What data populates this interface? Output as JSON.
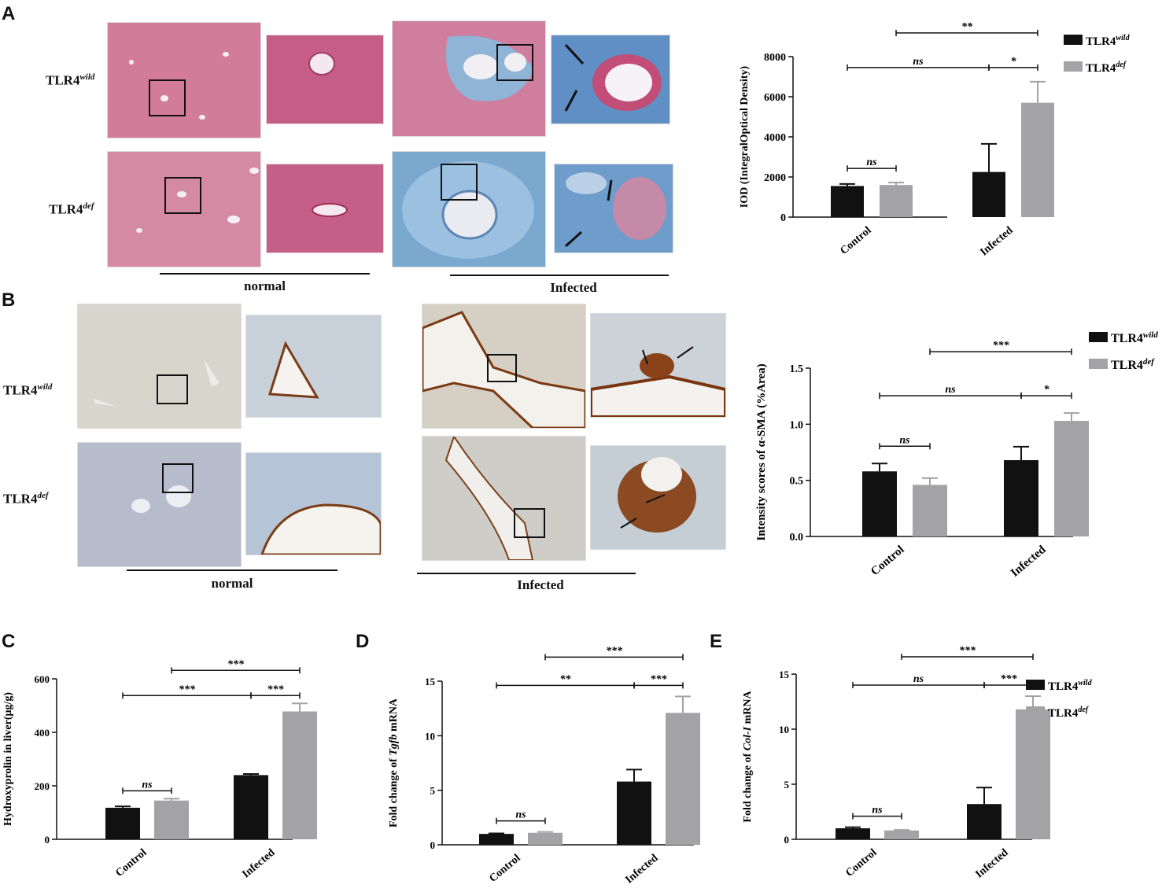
{
  "figure": {
    "panel_letters": [
      "A",
      "B",
      "C",
      "D",
      "E"
    ],
    "genotypes": {
      "wild": {
        "base": "TLR4",
        "sup": "wild"
      },
      "def": {
        "base": "TLR4",
        "sup": "def"
      }
    },
    "groups": {
      "normal": "normal",
      "infected": "Infected"
    }
  },
  "colors": {
    "wild": "#111111",
    "def": "#a3a3a5"
  },
  "chart_data": [
    {
      "id": "A",
      "type": "bar",
      "categories": [
        "Control",
        "Infected"
      ],
      "series": [
        {
          "name": "TLR4wild",
          "values": [
            1550,
            2250
          ],
          "err": [
            100,
            1400
          ]
        },
        {
          "name": "TLR4def",
          "values": [
            1600,
            5700
          ],
          "err": [
            120,
            1050
          ]
        }
      ],
      "ylabel": "IOD (IntegralOptical Density)",
      "ylim": [
        0,
        8000
      ],
      "yticks": [
        0,
        2000,
        4000,
        6000,
        8000
      ],
      "legend": "top-right",
      "brackets": [
        {
          "from": [
            0,
            0
          ],
          "to": [
            0,
            1
          ],
          "label": "ns"
        },
        {
          "from": [
            0,
            0
          ],
          "to": [
            1,
            0
          ],
          "label": "ns"
        },
        {
          "from": [
            1,
            0
          ],
          "to": [
            1,
            1
          ],
          "label": "*"
        },
        {
          "from": [
            0,
            1
          ],
          "to": [
            1,
            1
          ],
          "label": "**"
        }
      ]
    },
    {
      "id": "B",
      "type": "bar",
      "categories": [
        "Control",
        "Infected"
      ],
      "series": [
        {
          "name": "TLR4wild",
          "values": [
            0.58,
            0.68
          ],
          "err": [
            0.07,
            0.12
          ]
        },
        {
          "name": "TLR4def",
          "values": [
            0.46,
            1.03
          ],
          "err": [
            0.06,
            0.07
          ]
        }
      ],
      "ylabel": "Intensity scores of α-SMA (%Area)",
      "ylim": [
        0,
        1.5
      ],
      "yticks": [
        "0.0",
        "0.5",
        "1.0",
        "1.5"
      ],
      "legend": "top-right",
      "brackets": [
        {
          "from": [
            0,
            0
          ],
          "to": [
            0,
            1
          ],
          "label": "ns"
        },
        {
          "from": [
            0,
            0
          ],
          "to": [
            1,
            0
          ],
          "label": "ns"
        },
        {
          "from": [
            1,
            0
          ],
          "to": [
            1,
            1
          ],
          "label": "*"
        },
        {
          "from": [
            0,
            1
          ],
          "to": [
            1,
            1
          ],
          "label": "***"
        }
      ]
    },
    {
      "id": "C",
      "type": "bar",
      "categories": [
        "Control",
        "Infected"
      ],
      "series": [
        {
          "name": "TLR4wild",
          "values": [
            118,
            240
          ],
          "err": [
            5,
            4
          ]
        },
        {
          "name": "TLR4def",
          "values": [
            145,
            478
          ],
          "err": [
            7,
            30
          ]
        }
      ],
      "ylabel": "Hydroxyprolin in liver(μg/g)",
      "ylim": [
        0,
        600
      ],
      "yticks": [
        0,
        200,
        400,
        600
      ],
      "brackets": [
        {
          "from": [
            0,
            0
          ],
          "to": [
            0,
            1
          ],
          "label": "ns"
        },
        {
          "from": [
            0,
            0
          ],
          "to": [
            1,
            0
          ],
          "label": "***"
        },
        {
          "from": [
            1,
            0
          ],
          "to": [
            1,
            1
          ],
          "label": "***"
        },
        {
          "from": [
            0,
            1
          ],
          "to": [
            1,
            1
          ],
          "label": "***"
        }
      ]
    },
    {
      "id": "D",
      "type": "bar",
      "categories": [
        "Control",
        "Infected"
      ],
      "series": [
        {
          "name": "TLR4wild",
          "values": [
            1.0,
            5.8
          ],
          "err": [
            0.05,
            1.1
          ]
        },
        {
          "name": "TLR4def",
          "values": [
            1.1,
            12.1
          ],
          "err": [
            0.08,
            1.5
          ]
        }
      ],
      "ylabel_parts": [
        "Fold change of ",
        "Tgfb",
        " mRNA"
      ],
      "ylim": [
        0,
        15
      ],
      "yticks": [
        0,
        5,
        10,
        15
      ],
      "brackets": [
        {
          "from": [
            0,
            0
          ],
          "to": [
            0,
            1
          ],
          "label": "ns"
        },
        {
          "from": [
            0,
            0
          ],
          "to": [
            1,
            0
          ],
          "label": "**"
        },
        {
          "from": [
            1,
            0
          ],
          "to": [
            1,
            1
          ],
          "label": "***"
        },
        {
          "from": [
            0,
            1
          ],
          "to": [
            1,
            1
          ],
          "label": "***"
        }
      ]
    },
    {
      "id": "E",
      "type": "bar",
      "categories": [
        "Control",
        "Infected"
      ],
      "series": [
        {
          "name": "TLR4wild",
          "values": [
            1.0,
            3.2
          ],
          "err": [
            0.1,
            1.5
          ]
        },
        {
          "name": "TLR4def",
          "values": [
            0.8,
            11.8
          ],
          "err": [
            0.05,
            1.2
          ]
        }
      ],
      "ylabel_parts": [
        "Fold change of ",
        "Col-I",
        " mRNA"
      ],
      "ylim": [
        0,
        15
      ],
      "yticks": [
        0,
        5,
        10,
        15
      ],
      "legend": "top-right",
      "brackets": [
        {
          "from": [
            0,
            0
          ],
          "to": [
            0,
            1
          ],
          "label": "ns"
        },
        {
          "from": [
            0,
            0
          ],
          "to": [
            1,
            0
          ],
          "label": "ns"
        },
        {
          "from": [
            1,
            0
          ],
          "to": [
            1,
            1
          ],
          "label": "***"
        },
        {
          "from": [
            0,
            1
          ],
          "to": [
            1,
            1
          ],
          "label": "***"
        }
      ]
    }
  ]
}
